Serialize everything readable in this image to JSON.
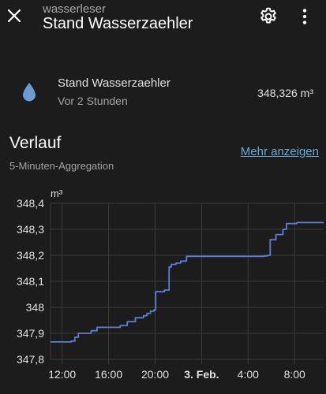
{
  "header": {
    "subtitle": "wasserleser",
    "title": "Stand Wasserzaehler"
  },
  "entity": {
    "name": "Stand Wasserzaehler",
    "last_changed": "Vor 2 Stunden",
    "state": "348,326 m³"
  },
  "history": {
    "title": "Verlauf",
    "subtitle": "5-Minuten-Aggregation",
    "more_link": "Mehr anzeigen"
  },
  "colors": {
    "background": "#1c1c1c",
    "line": "#5b7fd6",
    "icon": "#6b9bd1",
    "link": "#6aa9d8"
  },
  "chart_data": {
    "type": "line",
    "unit": "m³",
    "y_ticks": [
      "348,4",
      "348,3",
      "348,2",
      "348,1",
      "348",
      "347,9",
      "347,8"
    ],
    "y_values": [
      348.4,
      348.3,
      348.2,
      348.1,
      348.0,
      347.9,
      347.8
    ],
    "ylim": [
      347.8,
      348.4
    ],
    "x_ticks": [
      {
        "label": "12:00",
        "hour": 12,
        "bold": false
      },
      {
        "label": "16:00",
        "hour": 16,
        "bold": false
      },
      {
        "label": "20:00",
        "hour": 20,
        "bold": false
      },
      {
        "label": "3. Feb.",
        "hour": 24,
        "bold": true
      },
      {
        "label": "4:00",
        "hour": 28,
        "bold": false
      },
      {
        "label": "8:00",
        "hour": 32,
        "bold": false
      }
    ],
    "xlim": [
      11.0,
      34.5
    ],
    "grid": true,
    "series": [
      {
        "points": [
          [
            11.0,
            347.867
          ],
          [
            12.8,
            347.87
          ],
          [
            13.1,
            347.885
          ],
          [
            13.4,
            347.9
          ],
          [
            14.5,
            347.91
          ],
          [
            15.0,
            347.923
          ],
          [
            17.0,
            347.93
          ],
          [
            17.6,
            347.945
          ],
          [
            18.3,
            347.96
          ],
          [
            19.0,
            347.968
          ],
          [
            19.3,
            347.977
          ],
          [
            19.6,
            347.985
          ],
          [
            19.9,
            347.99
          ],
          [
            20.05,
            348.06
          ],
          [
            20.8,
            348.066
          ],
          [
            21.2,
            348.155
          ],
          [
            21.4,
            348.165
          ],
          [
            21.8,
            348.17
          ],
          [
            22.2,
            348.178
          ],
          [
            22.7,
            348.196
          ],
          [
            29.4,
            348.198
          ],
          [
            29.7,
            348.2
          ],
          [
            29.9,
            348.26
          ],
          [
            30.4,
            348.28
          ],
          [
            31.0,
            348.3
          ],
          [
            31.3,
            348.322
          ],
          [
            32.2,
            348.326
          ],
          [
            34.5,
            348.326
          ]
        ]
      }
    ]
  }
}
